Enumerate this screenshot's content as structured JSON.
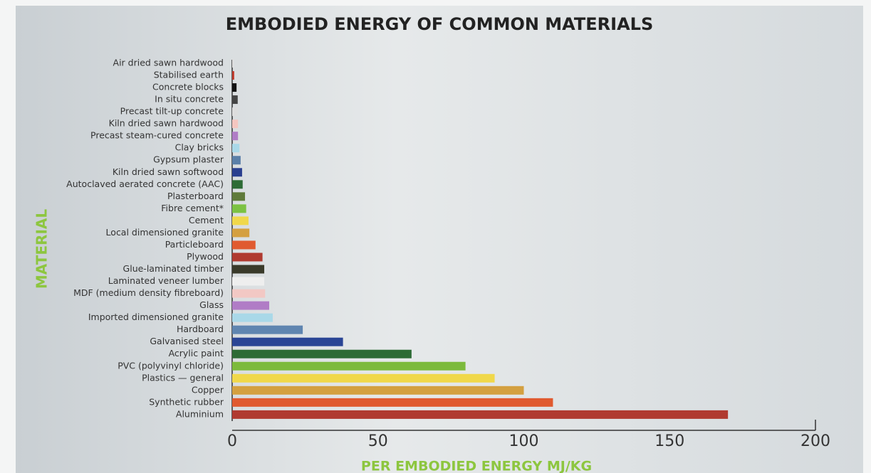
{
  "chart_data": {
    "type": "hbar",
    "title": "EMBODIED ENERGY OF COMMON MATERIALS",
    "x_label": "PER EMBODIED ENERGY MJ/KG",
    "y_label": "MATERIAL",
    "categories": [
      "Air dried sawn hardwood",
      "Stabilised earth",
      "Concrete blocks",
      "In situ concrete",
      "Precast tilt-up concrete",
      "Kiln dried sawn hardwood",
      "Precast steam-cured concrete",
      "Clay bricks",
      "Gypsum plaster",
      "Kiln dried sawn softwood",
      "Autoclaved aerated concrete (AAC)",
      "Plasterboard",
      "Fibre cement*",
      "Cement",
      "Local dimensioned granite",
      "Particleboard",
      "Plywood",
      "Glue-laminated timber",
      "Laminated veneer lumber",
      "MDF (medium density fibreboard)",
      "Glass",
      "Imported dimensioned granite",
      "Hardboard",
      "Galvanised steel",
      "Acrylic paint",
      "PVC (polyvinyl chloride)",
      "Plastics — general",
      "Copper",
      "Synthetic rubber",
      "Aluminium"
    ],
    "values": [
      0.5,
      0.7,
      1.5,
      1.9,
      1.9,
      2.0,
      2.0,
      2.5,
      2.9,
      3.4,
      3.6,
      4.4,
      4.8,
      5.6,
      5.9,
      8.0,
      10.4,
      11,
      11,
      11.3,
      12.7,
      13.9,
      24.2,
      38,
      61.5,
      80,
      90,
      100,
      110,
      170
    ],
    "colors": [
      "#dddddd",
      "#c0392b",
      "#111111",
      "#444444",
      "#dddddd",
      "#f4c6c0",
      "#b07cc6",
      "#a9d8e8",
      "#5a7fa8",
      "#2a3f8f",
      "#2d6b35",
      "#5f7a3a",
      "#7cc242",
      "#f0d84a",
      "#d4a040",
      "#e05a30",
      "#b03a30",
      "#3a3a2a",
      "#eeeeee",
      "#f2c8c4",
      "#b07cc6",
      "#a9d8e8",
      "#5f85b0",
      "#2a4595",
      "#2d6b35",
      "#7cba3c",
      "#f0d84a",
      "#d4a040",
      "#e05a30",
      "#b03a30"
    ],
    "xlim": [
      0,
      200
    ],
    "xticks": [
      0,
      50,
      100,
      150,
      200
    ]
  }
}
